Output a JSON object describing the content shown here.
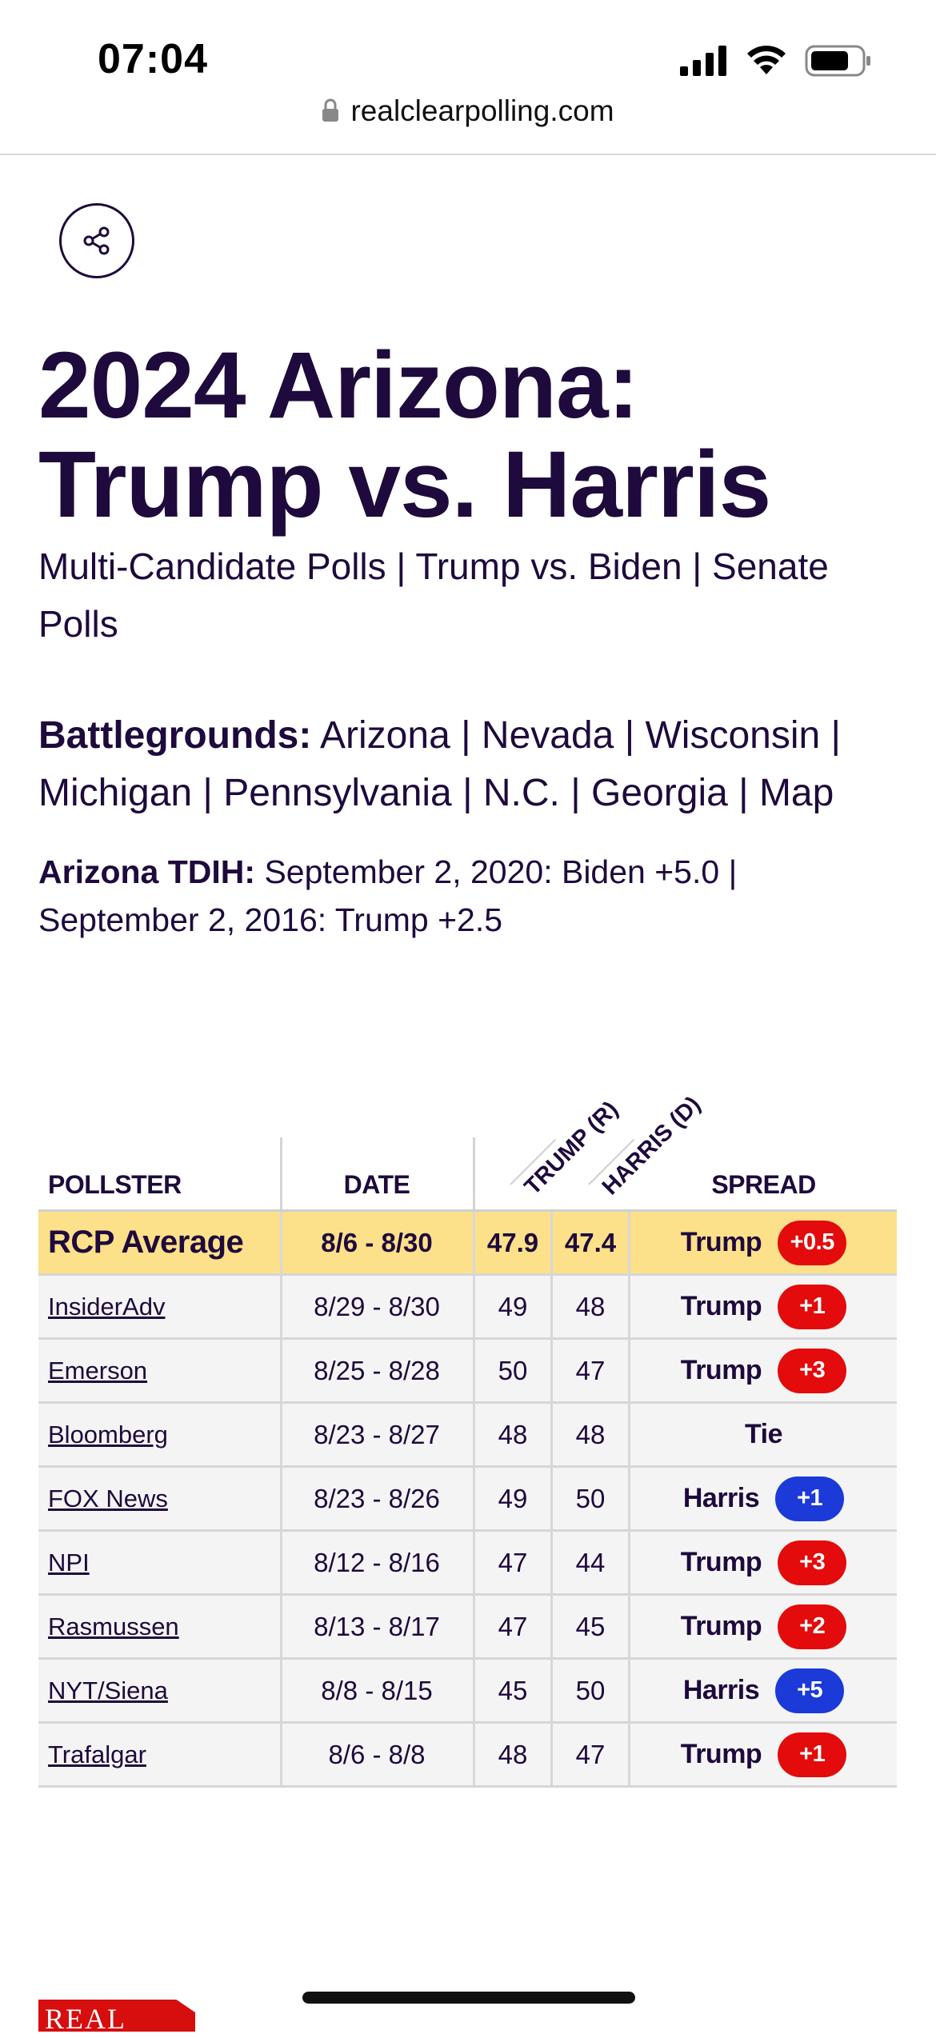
{
  "status_bar": {
    "time": "07:04"
  },
  "browser": {
    "url": "realclearpolling.com"
  },
  "page": {
    "title_line1": "2024 Arizona:",
    "title_line2": "Trump vs. Harris",
    "sub_links": [
      "Multi-Candidate Polls",
      "Trump vs. Biden",
      "Senate Polls"
    ],
    "battlegrounds_label": "Battlegrounds:",
    "battlegrounds": [
      "Arizona",
      "Nevada",
      "Wisconsin",
      "Michigan",
      "Pennsylvania",
      "N.C.",
      "Georgia",
      "Map"
    ],
    "tdih_label": "Arizona TDIH:",
    "tdih_items": [
      "September 2, 2020: Biden +5.0",
      "September 2, 2016: Trump +2.5"
    ]
  },
  "table": {
    "headers": {
      "pollster": "POLLSTER",
      "date": "DATE",
      "trump": "TRUMP (R)",
      "harris": "HARRIS (D)",
      "spread": "SPREAD"
    },
    "average": {
      "pollster": "RCP Average",
      "date": "8/6 - 8/30",
      "trump": "47.9",
      "harris": "47.4",
      "spread_leader": "Trump",
      "spread_value": "+0.5",
      "spread_party": "red"
    },
    "rows": [
      {
        "pollster": "InsiderAdv",
        "date": "8/29 - 8/30",
        "trump": "49",
        "harris": "48",
        "spread_leader": "Trump",
        "spread_value": "+1",
        "spread_party": "red"
      },
      {
        "pollster": "Emerson",
        "date": "8/25 - 8/28",
        "trump": "50",
        "harris": "47",
        "spread_leader": "Trump",
        "spread_value": "+3",
        "spread_party": "red"
      },
      {
        "pollster": "Bloomberg",
        "date": "8/23 - 8/27",
        "trump": "48",
        "harris": "48",
        "spread_leader": "Tie",
        "spread_value": "",
        "spread_party": ""
      },
      {
        "pollster": "FOX News",
        "date": "8/23 - 8/26",
        "trump": "49",
        "harris": "50",
        "spread_leader": "Harris",
        "spread_value": "+1",
        "spread_party": "blue"
      },
      {
        "pollster": "NPI",
        "date": "8/12 - 8/16",
        "trump": "47",
        "harris": "44",
        "spread_leader": "Trump",
        "spread_value": "+3",
        "spread_party": "red"
      },
      {
        "pollster": "Rasmussen",
        "date": "8/13 - 8/17",
        "trump": "47",
        "harris": "45",
        "spread_leader": "Trump",
        "spread_value": "+2",
        "spread_party": "red"
      },
      {
        "pollster": "NYT/Siena",
        "date": "8/8 - 8/15",
        "trump": "45",
        "harris": "50",
        "spread_leader": "Harris",
        "spread_value": "+5",
        "spread_party": "blue"
      },
      {
        "pollster": "Trafalgar",
        "date": "8/6 - 8/8",
        "trump": "48",
        "harris": "47",
        "spread_leader": "Trump",
        "spread_value": "+1",
        "spread_party": "red"
      }
    ]
  },
  "footer": {
    "logo_text": "REAL"
  },
  "colors": {
    "primary_text": "#1e0a3c",
    "avg_row": "#fde08a",
    "republican": "#e30b0b",
    "democrat": "#1b3ad8"
  },
  "icons": {
    "share": "share-icon",
    "lock": "lock-icon"
  }
}
